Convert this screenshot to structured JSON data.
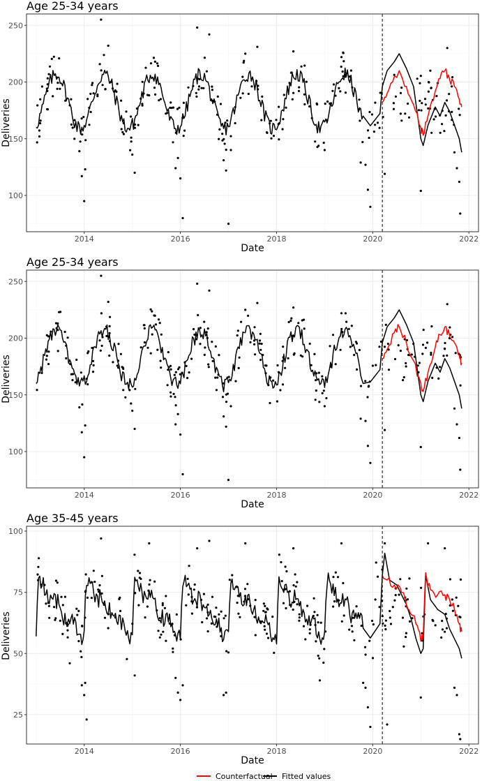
{
  "legend": {
    "counterfactual_label": "Counterfactual",
    "fitted_label": "Fitted values",
    "counterfactual_color": "#ff0000",
    "fitted_color": "#000000"
  },
  "chart_data": [
    {
      "type": "line",
      "title": "Age 25-34 years",
      "xlabel": "Date",
      "ylabel": "Deliveries",
      "xlim": [
        2012.8,
        2022.2
      ],
      "ylim": [
        68,
        260
      ],
      "x_ticks": [
        2014,
        2016,
        2018,
        2020,
        2022
      ],
      "x_tick_labels": [
        "2014",
        "2016",
        "2018",
        "2020",
        "2022"
      ],
      "y_ticks": [
        100,
        150,
        200,
        250
      ],
      "y_tick_labels": [
        "100",
        "150",
        "200",
        "250"
      ],
      "intervention_x": 2020.2,
      "grid": true,
      "series": [
        {
          "name": "Fitted values",
          "color": "#000000",
          "kind": "line",
          "season": {
            "base": 183,
            "amp": 24,
            "phase": 0.42
          },
          "x": [
            2013.0,
            2020.2
          ],
          "start_y": 160,
          "post": [
            [
              2020.2,
              196
            ],
            [
              2020.3,
              210
            ],
            [
              2020.45,
              218
            ],
            [
              2020.55,
              225
            ],
            [
              2020.7,
              212
            ],
            [
              2020.85,
              196
            ],
            [
              2021.0,
              150
            ],
            [
              2021.05,
              144
            ],
            [
              2021.15,
              162
            ],
            [
              2021.3,
              178
            ],
            [
              2021.4,
              170
            ],
            [
              2021.5,
              182
            ],
            [
              2021.6,
              174
            ],
            [
              2021.7,
              162
            ],
            [
              2021.8,
              150
            ],
            [
              2021.85,
              138
            ]
          ]
        },
        {
          "name": "Counterfactual",
          "color": "#ff0000",
          "kind": "line",
          "post": [
            [
              2020.2,
              182
            ],
            [
              2020.3,
              190
            ],
            [
              2020.45,
              205
            ],
            [
              2020.55,
              210
            ],
            [
              2020.7,
              196
            ],
            [
              2020.85,
              180
            ],
            [
              2021.0,
              160
            ],
            [
              2021.05,
              153
            ],
            [
              2021.15,
              170
            ],
            [
              2021.3,
              192
            ],
            [
              2021.4,
              203
            ],
            [
              2021.5,
              210
            ],
            [
              2021.6,
              202
            ],
            [
              2021.7,
              196
            ],
            [
              2021.8,
              185
            ],
            [
              2021.85,
              178
            ]
          ]
        },
        {
          "name": "Observed",
          "color": "#000000",
          "kind": "points",
          "outliers": [
            [
              2013.9,
              139
            ],
            [
              2013.95,
              117
            ],
            [
              2014.0,
              95
            ],
            [
              2014.02,
              123
            ],
            [
              2014.35,
              255
            ],
            [
              2014.5,
              232
            ],
            [
              2015.0,
              136
            ],
            [
              2015.05,
              120
            ],
            [
              2015.9,
              124
            ],
            [
              2015.95,
              133
            ],
            [
              2016.0,
              115
            ],
            [
              2016.05,
              80
            ],
            [
              2016.35,
              248
            ],
            [
              2016.6,
              242
            ],
            [
              2016.9,
              131
            ],
            [
              2016.95,
              122
            ],
            [
              2017.0,
              75
            ],
            [
              2017.05,
              140
            ],
            [
              2017.35,
              225
            ],
            [
              2017.6,
              231
            ],
            [
              2018.35,
              227
            ],
            [
              2019.0,
              140
            ],
            [
              2019.35,
              222
            ],
            [
              2019.75,
              129
            ],
            [
              2019.85,
              127
            ],
            [
              2019.9,
              105
            ],
            [
              2019.95,
              90
            ],
            [
              2020.25,
              119
            ],
            [
              2021.0,
              104
            ],
            [
              2021.55,
              230
            ],
            [
              2021.7,
              138
            ],
            [
              2021.75,
              124
            ],
            [
              2021.8,
              112
            ],
            [
              2021.82,
              84
            ]
          ],
          "n_regular": 270,
          "spread": 20
        }
      ]
    },
    {
      "type": "line",
      "title": "Age 25-34 years",
      "xlabel": "Date",
      "ylabel": "Deliveries",
      "xlim": [
        2012.8,
        2022.2
      ],
      "ylim": [
        68,
        260
      ],
      "x_ticks": [
        2014,
        2016,
        2018,
        2020,
        2022
      ],
      "x_tick_labels": [
        "2014",
        "2016",
        "2018",
        "2020",
        "2022"
      ],
      "y_ticks": [
        100,
        150,
        200,
        250
      ],
      "y_tick_labels": [
        "100",
        "150",
        "200",
        "250"
      ],
      "intervention_x": 2020.2,
      "grid": true,
      "series": [
        {
          "name": "Fitted values",
          "color": "#000000",
          "kind": "line",
          "season": {
            "base": 183,
            "amp": 24,
            "phase": 0.42
          },
          "x": [
            2013.0,
            2020.2
          ],
          "start_y": 160,
          "post": [
            [
              2020.2,
              196
            ],
            [
              2020.3,
              210
            ],
            [
              2020.45,
              218
            ],
            [
              2020.55,
              225
            ],
            [
              2020.7,
              212
            ],
            [
              2020.85,
              196
            ],
            [
              2021.0,
              150
            ],
            [
              2021.05,
              144
            ],
            [
              2021.15,
              162
            ],
            [
              2021.3,
              178
            ],
            [
              2021.4,
              170
            ],
            [
              2021.5,
              182
            ],
            [
              2021.6,
              174
            ],
            [
              2021.7,
              162
            ],
            [
              2021.8,
              150
            ],
            [
              2021.85,
              138
            ]
          ]
        },
        {
          "name": "Counterfactual",
          "color": "#ff0000",
          "kind": "line",
          "post": [
            [
              2020.2,
              182
            ],
            [
              2020.3,
              190
            ],
            [
              2020.45,
              205
            ],
            [
              2020.55,
              210
            ],
            [
              2020.7,
              196
            ],
            [
              2020.85,
              180
            ],
            [
              2021.0,
              160
            ],
            [
              2021.05,
              153
            ],
            [
              2021.15,
              170
            ],
            [
              2021.3,
              192
            ],
            [
              2021.4,
              203
            ],
            [
              2021.5,
              210
            ],
            [
              2021.6,
              202
            ],
            [
              2021.7,
              196
            ],
            [
              2021.8,
              185
            ],
            [
              2021.85,
              178
            ]
          ]
        },
        {
          "name": "Observed",
          "color": "#000000",
          "kind": "points",
          "outliers": [
            [
              2013.9,
              139
            ],
            [
              2013.95,
              117
            ],
            [
              2014.0,
              95
            ],
            [
              2014.02,
              123
            ],
            [
              2014.35,
              255
            ],
            [
              2014.5,
              232
            ],
            [
              2015.0,
              136
            ],
            [
              2015.05,
              120
            ],
            [
              2015.9,
              124
            ],
            [
              2015.95,
              133
            ],
            [
              2016.0,
              115
            ],
            [
              2016.05,
              80
            ],
            [
              2016.35,
              248
            ],
            [
              2016.6,
              242
            ],
            [
              2016.9,
              131
            ],
            [
              2016.95,
              122
            ],
            [
              2017.0,
              75
            ],
            [
              2017.05,
              140
            ],
            [
              2017.35,
              225
            ],
            [
              2017.6,
              231
            ],
            [
              2018.35,
              227
            ],
            [
              2019.0,
              140
            ],
            [
              2019.35,
              222
            ],
            [
              2019.75,
              129
            ],
            [
              2019.85,
              127
            ],
            [
              2019.9,
              105
            ],
            [
              2019.95,
              90
            ],
            [
              2020.25,
              119
            ],
            [
              2021.0,
              104
            ],
            [
              2021.55,
              230
            ],
            [
              2021.7,
              138
            ],
            [
              2021.75,
              124
            ],
            [
              2021.8,
              112
            ],
            [
              2021.82,
              84
            ]
          ],
          "n_regular": 270,
          "spread": 20
        }
      ]
    },
    {
      "type": "line",
      "title": "Age 35-45 years",
      "xlabel": "Date",
      "ylabel": "Deliveries",
      "xlim": [
        2012.8,
        2022.2
      ],
      "ylim": [
        13,
        102
      ],
      "x_ticks": [
        2014,
        2016,
        2018,
        2020,
        2022
      ],
      "x_tick_labels": [
        "2014",
        "2016",
        "2018",
        "2020",
        "2022"
      ],
      "y_ticks": [
        25,
        50,
        75,
        100
      ],
      "y_tick_labels": [
        "25",
        "50",
        "75",
        "100"
      ],
      "intervention_x": 2020.2,
      "grid": true,
      "series": [
        {
          "name": "Fitted values",
          "color": "#000000",
          "kind": "line",
          "season": {
            "base": 68,
            "amp": 13,
            "phase": 0.05,
            "sawtooth": true
          },
          "x": [
            2013.0,
            2020.2
          ],
          "start_y": 57,
          "post": [
            [
              2020.2,
              82
            ],
            [
              2020.25,
              91
            ],
            [
              2020.35,
              80
            ],
            [
              2020.5,
              78
            ],
            [
              2020.6,
              74
            ],
            [
              2020.7,
              70
            ],
            [
              2020.8,
              64
            ],
            [
              2020.9,
              56
            ],
            [
              2021.0,
              50
            ],
            [
              2021.05,
              52
            ],
            [
              2021.1,
              82
            ],
            [
              2021.2,
              72
            ],
            [
              2021.35,
              68
            ],
            [
              2021.5,
              66
            ],
            [
              2021.6,
              60
            ],
            [
              2021.7,
              56
            ],
            [
              2021.8,
              52
            ],
            [
              2021.85,
              48
            ]
          ]
        },
        {
          "name": "Counterfactual",
          "color": "#ff0000",
          "kind": "line",
          "post": [
            [
              2020.2,
              82
            ],
            [
              2020.3,
              80
            ],
            [
              2020.45,
              78
            ],
            [
              2020.6,
              75
            ],
            [
              2020.75,
              68
            ],
            [
              2020.9,
              62
            ],
            [
              2021.0,
              55
            ],
            [
              2021.05,
              57
            ],
            [
              2021.1,
              83
            ],
            [
              2021.2,
              76
            ],
            [
              2021.35,
              74
            ],
            [
              2021.5,
              74
            ],
            [
              2021.6,
              72
            ],
            [
              2021.7,
              68
            ],
            [
              2021.8,
              62
            ],
            [
              2021.85,
              59
            ]
          ]
        },
        {
          "name": "Observed",
          "color": "#000000",
          "kind": "points",
          "outliers": [
            [
              2013.7,
              46
            ],
            [
              2013.95,
              37
            ],
            [
              2014.0,
              33
            ],
            [
              2014.02,
              38
            ],
            [
              2014.05,
              23
            ],
            [
              2014.35,
              97
            ],
            [
              2015.05,
              41
            ],
            [
              2015.35,
              95
            ],
            [
              2015.9,
              40
            ],
            [
              2015.95,
              34
            ],
            [
              2016.0,
              31
            ],
            [
              2016.05,
              37
            ],
            [
              2016.35,
              93
            ],
            [
              2016.6,
              96
            ],
            [
              2016.9,
              33
            ],
            [
              2016.95,
              34
            ],
            [
              2017.35,
              95
            ],
            [
              2018.35,
              93
            ],
            [
              2018.9,
              39
            ],
            [
              2019.35,
              95
            ],
            [
              2019.8,
              38
            ],
            [
              2019.85,
              36
            ],
            [
              2019.9,
              28
            ],
            [
              2019.95,
              20
            ],
            [
              2020.25,
              95
            ],
            [
              2020.3,
              21
            ],
            [
              2021.0,
              32
            ],
            [
              2021.15,
              95
            ],
            [
              2021.5,
              93
            ],
            [
              2021.7,
              36
            ],
            [
              2021.75,
              33
            ],
            [
              2021.8,
              17
            ],
            [
              2021.82,
              15
            ]
          ],
          "n_regular": 270,
          "spread": 10
        }
      ]
    }
  ]
}
